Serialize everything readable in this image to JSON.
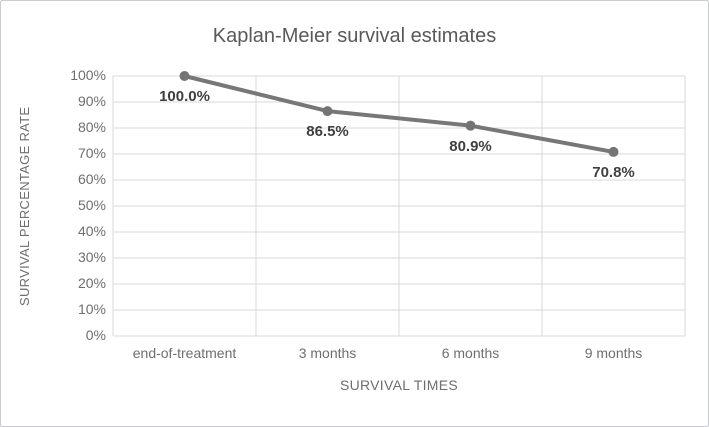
{
  "chart_data": {
    "type": "line",
    "title": "Kaplan-Meier survival estimates",
    "xlabel": "SURVIVAL TIMES",
    "ylabel": "SURVIVAL PERCENTAGE RATE",
    "categories": [
      "end-of-treatment",
      "3 months",
      "6 months",
      "9 months"
    ],
    "series": [
      {
        "name": "survival-percentage",
        "values": [
          100.0,
          86.5,
          80.9,
          70.8
        ],
        "data_labels": [
          "100.0%",
          "86.5%",
          "80.9%",
          "70.8%"
        ]
      }
    ],
    "ytick_labels": [
      "100%",
      "90%",
      "80%",
      "70%",
      "60%",
      "50%",
      "40%",
      "30%",
      "20%",
      "10%",
      "0%"
    ],
    "ylim": [
      0,
      100
    ],
    "grid": true,
    "legend": "none",
    "marker": "circle",
    "colors": {
      "series_line": "#777777",
      "marker_fill": "#747474",
      "gridline": "#d9d9d9",
      "title_text": "#595959",
      "axis_text": "#6e6e6e",
      "data_label_text": "#3f3f3f",
      "frame_border": "#c9cdd1",
      "background": "#ffffff"
    }
  }
}
